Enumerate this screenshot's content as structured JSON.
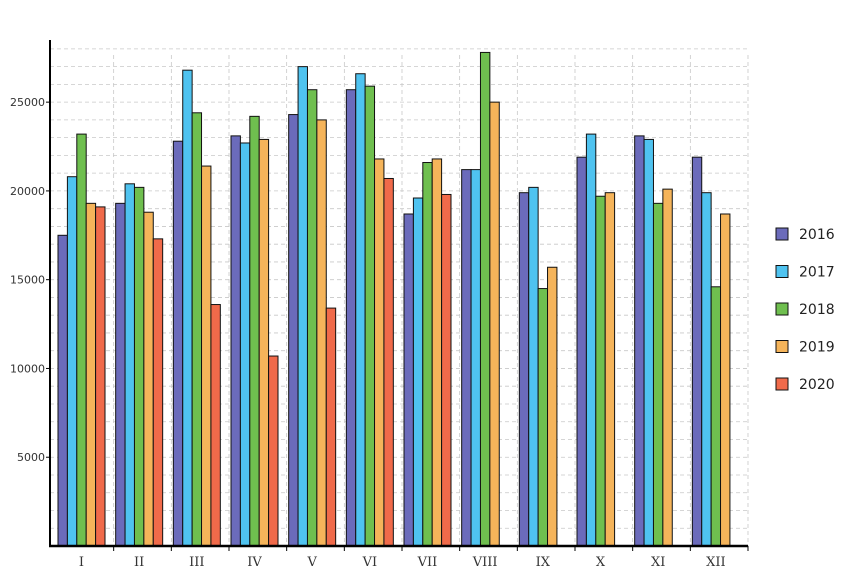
{
  "chart_data": {
    "type": "bar",
    "categories": [
      "I",
      "II",
      "III",
      "IV",
      "V",
      "VI",
      "VII",
      "VIII",
      "IX",
      "X",
      "XI",
      "XII"
    ],
    "series": [
      {
        "name": "2016",
        "color": "#6b6bbb",
        "values": [
          17500,
          19300,
          22800,
          23100,
          24300,
          25700,
          18700,
          21200,
          19900,
          21900,
          23100,
          21900
        ]
      },
      {
        "name": "2017",
        "color": "#4fc3f0",
        "values": [
          20800,
          20400,
          26800,
          22700,
          27000,
          26600,
          19600,
          21200,
          20200,
          23200,
          22900,
          19900
        ]
      },
      {
        "name": "2018",
        "color": "#6fbf4f",
        "values": [
          23200,
          20200,
          24400,
          24200,
          25700,
          25900,
          21600,
          27800,
          14500,
          19700,
          19300,
          14600
        ]
      },
      {
        "name": "2019",
        "color": "#f5b45a",
        "values": [
          19300,
          18800,
          21400,
          22900,
          24000,
          21800,
          21800,
          25000,
          15700,
          19900,
          20100,
          18700
        ]
      },
      {
        "name": "2020",
        "color": "#f06a4a",
        "values": [
          19100,
          17300,
          13600,
          10700,
          13400,
          20700,
          19800,
          null,
          null,
          null,
          null,
          null
        ]
      }
    ],
    "ylim": [
      0,
      28500
    ],
    "yticks": [
      5000,
      10000,
      15000,
      20000,
      25000
    ],
    "minor_grid_step": 1000,
    "grid": true,
    "legend_position": "right",
    "title": "",
    "xlabel": "",
    "ylabel": ""
  }
}
